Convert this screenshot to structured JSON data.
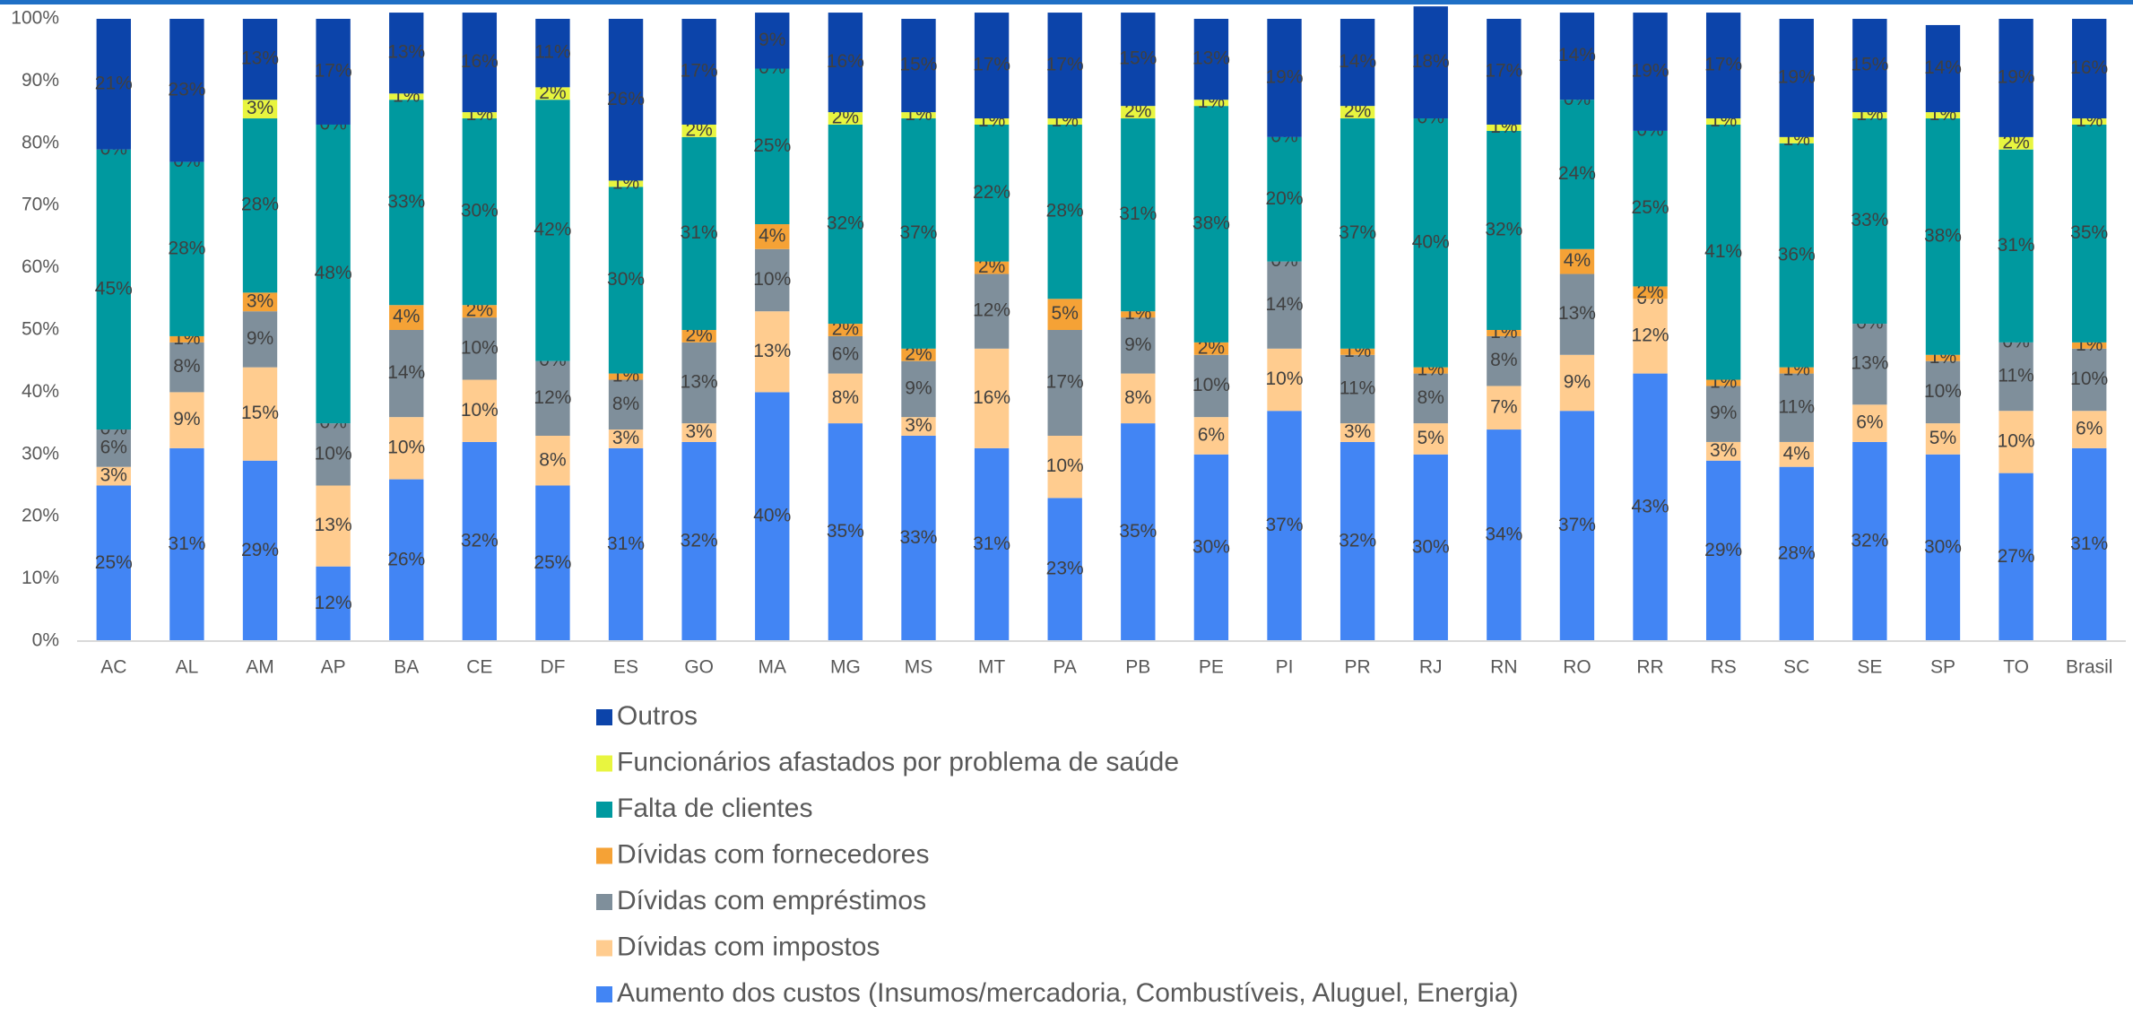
{
  "chart_data": {
    "type": "stacked_bar",
    "categories": [
      "AC",
      "AL",
      "AM",
      "AP",
      "BA",
      "CE",
      "DF",
      "ES",
      "GO",
      "MA",
      "MG",
      "MS",
      "MT",
      "PA",
      "PB",
      "PE",
      "PI",
      "PR",
      "RJ",
      "RN",
      "RO",
      "RR",
      "RS",
      "SC",
      "SE",
      "SP",
      "TO",
      "Brasil"
    ],
    "ylim": [
      0,
      100
    ],
    "yticks": [
      {
        "value": 0,
        "label": "0%"
      },
      {
        "value": 10,
        "label": "10%"
      },
      {
        "value": 20,
        "label": "20%"
      },
      {
        "value": 30,
        "label": "30%"
      },
      {
        "value": 40,
        "label": "40%"
      },
      {
        "value": 50,
        "label": "50%"
      },
      {
        "value": 60,
        "label": "60%"
      },
      {
        "value": 70,
        "label": "70%"
      },
      {
        "value": 80,
        "label": "80%"
      },
      {
        "value": 90,
        "label": "90%"
      },
      {
        "value": 100,
        "label": "100%"
      }
    ],
    "grid": false,
    "legend": "bottom",
    "series": [
      {
        "name": "Aumento dos custos (Insumos/mercadoria, Combustíveis, Aluguel, Energia)",
        "color": "#4285f4",
        "values": [
          25,
          31,
          29,
          12,
          26,
          32,
          25,
          31,
          32,
          40,
          35,
          33,
          31,
          23,
          35,
          30,
          37,
          32,
          30,
          34,
          37,
          43,
          29,
          28,
          32,
          30,
          27,
          31
        ],
        "value_labels": [
          "25%",
          "31%",
          "29%",
          "12%",
          "26%",
          "32%",
          "25%",
          "31%",
          "32%",
          "40%",
          "35%",
          "33%",
          "31%",
          "23%",
          "35%",
          "30%",
          "37%",
          "32%",
          "30%",
          "34%",
          "37%",
          "43%",
          "29%",
          "28%",
          "32%",
          "30%",
          "27%",
          "31%"
        ]
      },
      {
        "name": "Dívidas com impostos",
        "color": "#ffcc8f",
        "values": [
          3,
          9,
          15,
          13,
          10,
          10,
          8,
          3,
          3,
          13,
          8,
          3,
          16,
          10,
          8,
          6,
          10,
          3,
          5,
          7,
          9,
          12,
          3,
          4,
          6,
          5,
          10,
          6
        ],
        "value_labels": [
          "3%",
          "9%",
          "15%",
          "13%",
          "10%",
          "10%",
          "8%",
          "3%",
          "3%",
          "13%",
          "8%",
          "3%",
          "16%",
          "10%",
          "8%",
          "6%",
          "10%",
          "3%",
          "5%",
          "7%",
          "9%",
          "12%",
          "3%",
          "4%",
          "6%",
          "5%",
          "10%",
          "6%"
        ]
      },
      {
        "name": "Dívidas com empréstimos",
        "color": "#7f8f9b",
        "values": [
          6,
          8,
          9,
          10,
          14,
          10,
          12,
          8,
          13,
          10,
          6,
          9,
          12,
          17,
          9,
          10,
          14,
          11,
          8,
          8,
          13,
          0,
          9,
          11,
          13,
          10,
          11,
          10
        ],
        "value_labels": [
          "6%",
          "8%",
          "9%",
          "10%",
          "14%",
          "10%",
          "12%",
          "8%",
          "13%",
          "10%",
          "6%",
          "9%",
          "12%",
          "17%",
          "9%",
          "10%",
          "14%",
          "11%",
          "8%",
          "8%",
          "13%",
          "0%",
          "9%",
          "11%",
          "13%",
          "10%",
          "11%",
          "10%"
        ]
      },
      {
        "name": "Dívidas com fornecedores",
        "color": "#f5a236",
        "values": [
          0,
          1,
          3,
          0,
          4,
          2,
          0,
          1,
          2,
          4,
          2,
          2,
          2,
          5,
          1,
          2,
          0,
          1,
          1,
          1,
          4,
          2,
          1,
          1,
          0,
          1,
          0,
          1
        ],
        "value_labels": [
          "0%",
          "1%",
          "3%",
          "0%",
          "4%",
          "2%",
          "0%",
          "1%",
          "2%",
          "4%",
          "2%",
          "2%",
          "2%",
          "5%",
          "1%",
          "2%",
          "0%",
          "1%",
          "1%",
          "1%",
          "4%",
          "2%",
          "1%",
          "1%",
          "0%",
          "1%",
          "0%",
          "1%"
        ]
      },
      {
        "name": "Falta de clientes",
        "color": "#00999f",
        "values": [
          45,
          28,
          28,
          48,
          33,
          30,
          42,
          30,
          31,
          25,
          32,
          37,
          22,
          28,
          31,
          38,
          20,
          37,
          40,
          32,
          24,
          25,
          41,
          36,
          33,
          38,
          31,
          35
        ],
        "value_labels": [
          "45%",
          "28%",
          "28%",
          "48%",
          "33%",
          "30%",
          "42%",
          "30%",
          "31%",
          "25%",
          "32%",
          "37%",
          "22%",
          "28%",
          "31%",
          "38%",
          "20%",
          "37%",
          "40%",
          "32%",
          "24%",
          "25%",
          "41%",
          "36%",
          "33%",
          "38%",
          "31%",
          "35%"
        ]
      },
      {
        "name": "Funcionários afastados por problema de saúde",
        "color": "#e8f53f",
        "values": [
          0,
          0,
          3,
          0,
          1,
          1,
          2,
          1,
          2,
          0,
          2,
          1,
          1,
          1,
          2,
          1,
          0,
          2,
          0,
          1,
          0,
          0,
          1,
          1,
          1,
          1,
          2,
          1
        ],
        "value_labels": [
          "0%",
          "0%",
          "3%",
          "0%",
          "1%",
          "1%",
          "2%",
          "1%",
          "2%",
          "0%",
          "2%",
          "1%",
          "1%",
          "1%",
          "2%",
          "1%",
          "0%",
          "2%",
          "0%",
          "1%",
          "0%",
          "0%",
          "1%",
          "1%",
          "1%",
          "1%",
          "2%",
          "1%"
        ]
      },
      {
        "name": "Outros",
        "color": "#0c44aa",
        "values": [
          21,
          23,
          13,
          17,
          13,
          16,
          11,
          26,
          17,
          9,
          16,
          15,
          17,
          17,
          15,
          13,
          19,
          14,
          18,
          17,
          14,
          19,
          17,
          19,
          15,
          14,
          19,
          16
        ],
        "value_labels": [
          "21%",
          "23%",
          "13%",
          "17%",
          "13%",
          "16%",
          "11%",
          "26%",
          "17%",
          "9%",
          "16%",
          "15%",
          "17%",
          "17%",
          "15%",
          "13%",
          "19%",
          "14%",
          "18%",
          "17%",
          "14%",
          "19%",
          "17%",
          "19%",
          "15%",
          "14%",
          "19%",
          "16%"
        ]
      }
    ]
  }
}
